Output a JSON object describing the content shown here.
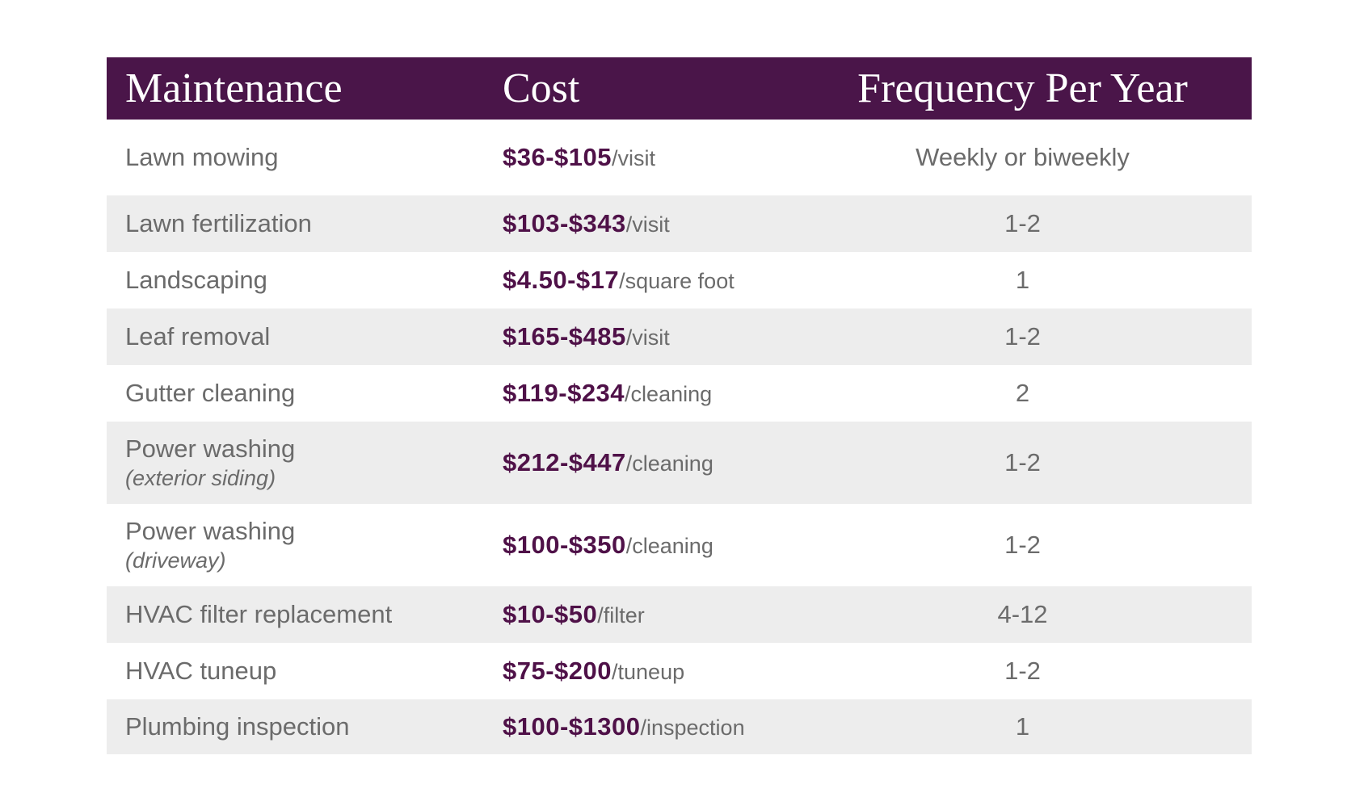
{
  "colors": {
    "header_bg": "#4a1549",
    "header_text": "#ffffff",
    "price": "#4f1148",
    "text": "#6b6b6b",
    "row_alt_bg": "#ededed",
    "page_bg": "#ffffff"
  },
  "table": {
    "columns": [
      "Maintenance",
      "Cost",
      "Frequency Per Year"
    ],
    "rows": [
      {
        "maintenance": "Lawn mowing",
        "note": "",
        "cost": "$36-$105",
        "unit": "/visit",
        "freq": "Weekly or biweekly"
      },
      {
        "maintenance": "Lawn fertilization",
        "note": "",
        "cost": "$103-$343",
        "unit": "/visit",
        "freq": "1-2"
      },
      {
        "maintenance": "Landscaping",
        "note": "",
        "cost": "$4.50-$17",
        "unit": "/square foot",
        "freq": "1"
      },
      {
        "maintenance": "Leaf removal",
        "note": "",
        "cost": "$165-$485",
        "unit": "/visit",
        "freq": "1-2"
      },
      {
        "maintenance": "Gutter cleaning",
        "note": "",
        "cost": "$119-$234",
        "unit": "/cleaning",
        "freq": "2"
      },
      {
        "maintenance": "Power washing",
        "note": "(exterior siding)",
        "cost": "$212-$447",
        "unit": "/cleaning",
        "freq": "1-2"
      },
      {
        "maintenance": "Power washing",
        "note": "(driveway)",
        "cost": "$100-$350",
        "unit": "/cleaning",
        "freq": "1-2"
      },
      {
        "maintenance": "HVAC filter replacement",
        "note": "",
        "cost": "$10-$50",
        "unit": "/filter",
        "freq": "4-12"
      },
      {
        "maintenance": "HVAC tuneup",
        "note": "",
        "cost": "$75-$200",
        "unit": "/tuneup",
        "freq": "1-2"
      },
      {
        "maintenance": "Plumbing inspection",
        "note": "",
        "cost": "$100-$1300",
        "unit": "/inspection",
        "freq": "1"
      }
    ]
  },
  "chart_data": {
    "type": "table",
    "title": "",
    "columns": [
      "Maintenance",
      "Cost",
      "Frequency Per Year"
    ],
    "rows": [
      [
        "Lawn mowing",
        "$36-$105/visit",
        "Weekly or biweekly"
      ],
      [
        "Lawn fertilization",
        "$103-$343/visit",
        "1-2"
      ],
      [
        "Landscaping",
        "$4.50-$17/square foot",
        "1"
      ],
      [
        "Leaf removal",
        "$165-$485/visit",
        "1-2"
      ],
      [
        "Gutter cleaning",
        "$119-$234/cleaning",
        "2"
      ],
      [
        "Power washing (exterior siding)",
        "$212-$447/cleaning",
        "1-2"
      ],
      [
        "Power washing (driveway)",
        "$100-$350/cleaning",
        "1-2"
      ],
      [
        "HVAC filter replacement",
        "$10-$50/filter",
        "4-12"
      ],
      [
        "HVAC tuneup",
        "$75-$200/tuneup",
        "1-2"
      ],
      [
        "Plumbing inspection",
        "$100-$1300/inspection",
        "1"
      ]
    ],
    "layout_hints": {
      "header_style": "dark purple band, white serif text",
      "zebra_striping": "white / light gray alternating starting white",
      "cost_format": "bold purple range + gray unit suffix",
      "frequency_alignment": "center"
    }
  }
}
